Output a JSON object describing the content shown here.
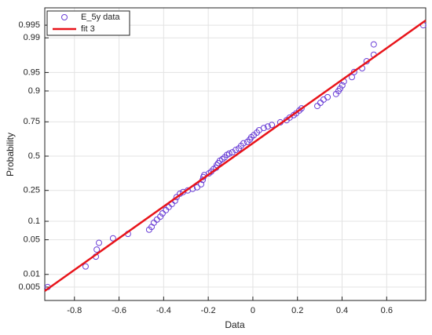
{
  "chart_data": {
    "type": "scatter",
    "yscale": "normal-probability",
    "grid": true,
    "legend": "upper-left",
    "xlabel": "Data",
    "ylabel": "Probability",
    "xlim": [
      -0.933,
      0.775
    ],
    "ylim": [
      0.00226,
      0.99823
    ],
    "xticks": [
      -0.8,
      -0.6,
      -0.4,
      -0.2,
      0,
      0.2,
      0.4,
      0.6
    ],
    "yticks": [
      0.005,
      0.01,
      0.05,
      0.1,
      0.25,
      0.5,
      0.75,
      0.9,
      0.95,
      0.99,
      0.995
    ],
    "series": [
      {
        "name": "E_5y data",
        "type": "scatter",
        "color": "#6a3fd6",
        "x": [
          -0.92,
          -0.75,
          -0.704,
          -0.7,
          -0.69,
          -0.627,
          -0.56,
          -0.465,
          -0.454,
          -0.444,
          -0.43,
          -0.415,
          -0.405,
          -0.39,
          -0.377,
          -0.363,
          -0.349,
          -0.342,
          -0.327,
          -0.313,
          -0.292,
          -0.27,
          -0.25,
          -0.232,
          -0.225,
          -0.222,
          -0.218,
          -0.197,
          -0.187,
          -0.176,
          -0.165,
          -0.162,
          -0.155,
          -0.148,
          -0.137,
          -0.127,
          -0.116,
          -0.106,
          -0.092,
          -0.077,
          -0.063,
          -0.053,
          -0.042,
          -0.025,
          -0.014,
          -0.007,
          0.004,
          0.018,
          0.028,
          0.049,
          0.067,
          0.085,
          0.123,
          0.151,
          0.165,
          0.183,
          0.194,
          0.208,
          0.218,
          0.289,
          0.303,
          0.317,
          0.335,
          0.373,
          0.384,
          0.391,
          0.401,
          0.408,
          0.444,
          0.454,
          0.49,
          0.51,
          0.542,
          0.542,
          0.764
        ],
        "values": [
          0.005,
          0.015,
          0.024,
          0.033,
          0.044,
          0.053,
          0.063,
          0.074,
          0.082,
          0.095,
          0.106,
          0.117,
          0.13,
          0.144,
          0.158,
          0.173,
          0.19,
          0.21,
          0.23,
          0.24,
          0.25,
          0.26,
          0.27,
          0.29,
          0.32,
          0.34,
          0.355,
          0.367,
          0.38,
          0.4,
          0.41,
          0.43,
          0.445,
          0.464,
          0.476,
          0.49,
          0.51,
          0.52,
          0.53,
          0.548,
          0.56,
          0.58,
          0.6,
          0.61,
          0.627,
          0.645,
          0.66,
          0.678,
          0.695,
          0.71,
          0.72,
          0.73,
          0.747,
          0.76,
          0.776,
          0.79,
          0.8,
          0.815,
          0.826,
          0.838,
          0.853,
          0.867,
          0.877,
          0.889,
          0.9,
          0.908,
          0.918,
          0.929,
          0.94,
          0.951,
          0.958,
          0.969,
          0.977,
          0.986,
          0.995
        ]
      },
      {
        "name": "fit 3",
        "type": "line",
        "color": "#e8141a",
        "x": [
          -0.933,
          0.775
        ],
        "values": [
          0.004,
          0.9962
        ]
      }
    ]
  }
}
